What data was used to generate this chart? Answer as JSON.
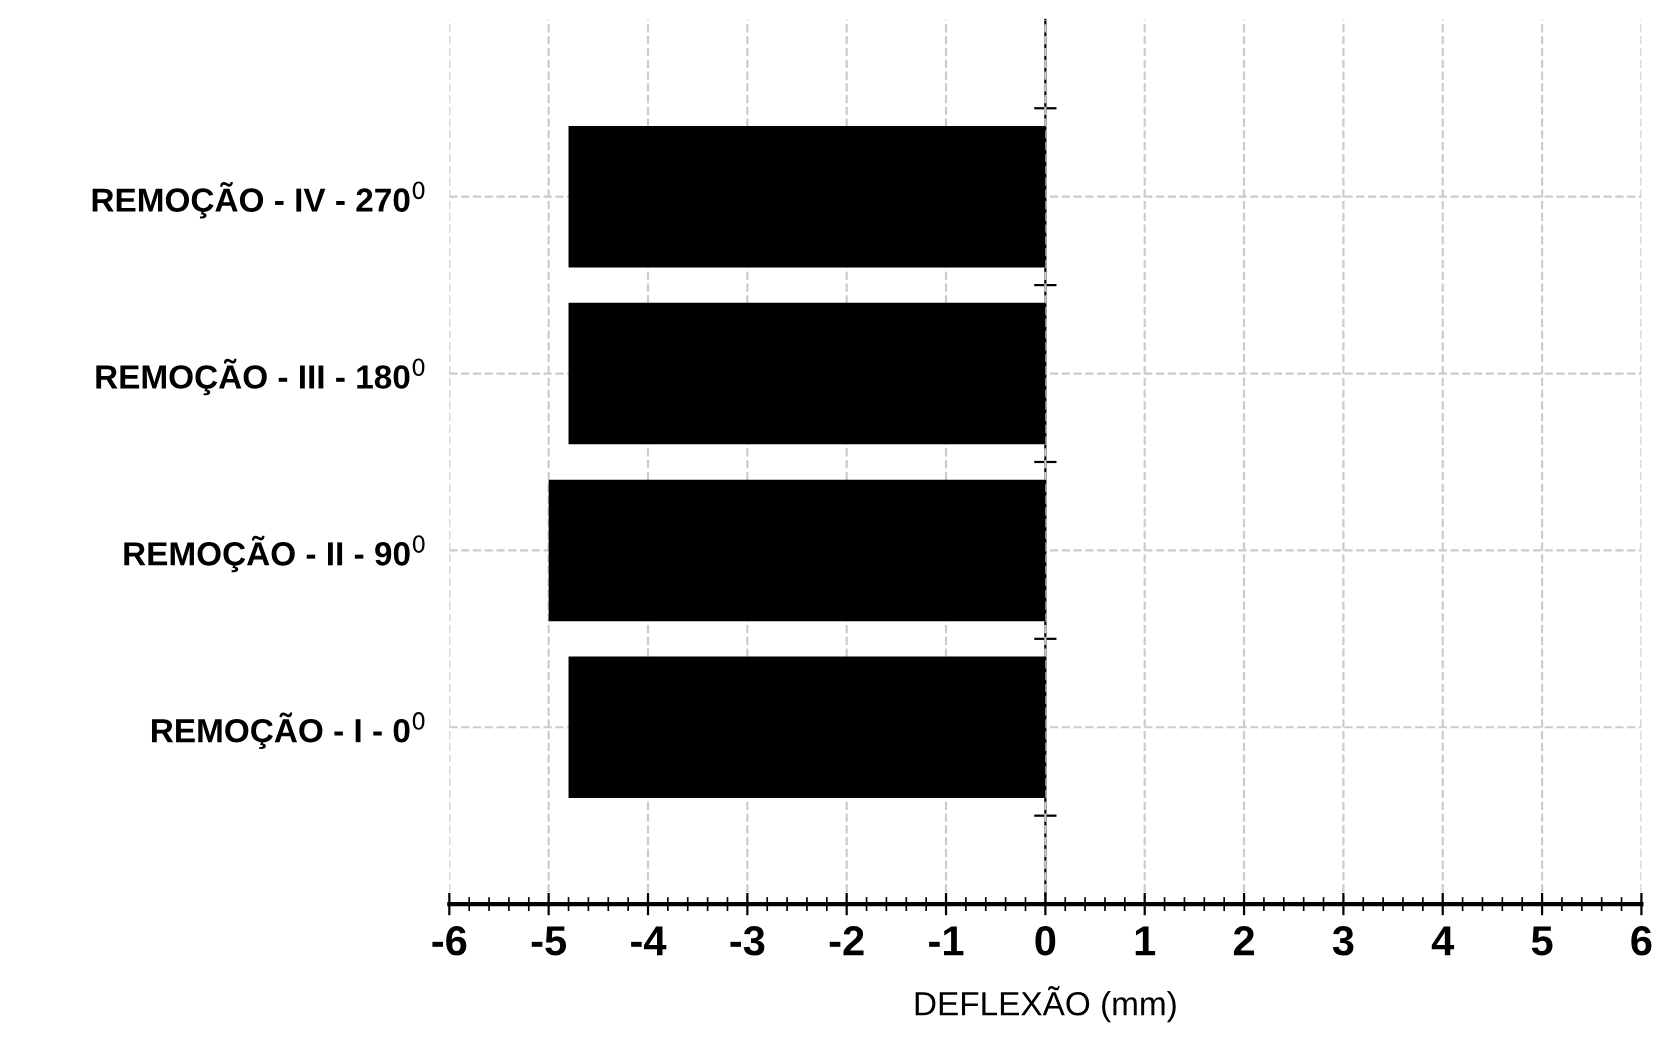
{
  "chart_data": {
    "type": "bar",
    "orientation": "horizontal",
    "xlabel": "DEFLEXÃO (mm)",
    "categories": [
      "REMOÇÃO - IV - 270$^{0}$",
      "REMOÇÃO - III - 180$^{0}$",
      "REMOÇÃO - II - 90$^{0}$",
      "REMOÇÃO - I - 0$^{0}$"
    ],
    "values": [
      -4.8,
      -4.8,
      -5.0,
      -4.8
    ],
    "color": "#000000",
    "xlim": [
      -6,
      6
    ],
    "xticks": [
      -6,
      -5,
      -4,
      -3,
      -2,
      -1,
      0,
      1,
      2,
      3,
      4,
      5,
      6
    ],
    "grid": true,
    "legend": false
  }
}
